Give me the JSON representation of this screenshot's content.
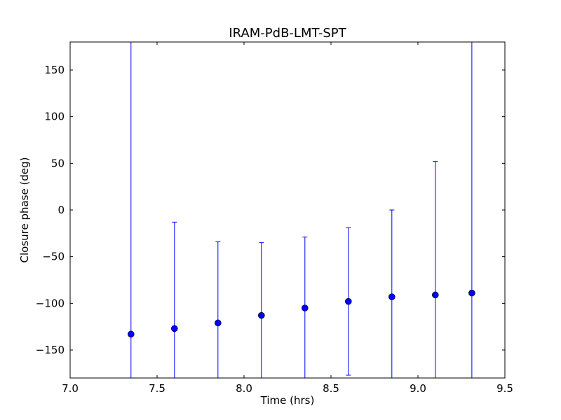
{
  "chart_data": {
    "type": "scatter",
    "title": "IRAM-PdB-LMT-SPT",
    "xlabel": "Time (hrs)",
    "ylabel": "Closure phase (deg)",
    "xlim": [
      7.0,
      9.5
    ],
    "ylim": [
      -180,
      180
    ],
    "xticks": [
      7.0,
      7.5,
      8.0,
      8.5,
      9.0,
      9.5
    ],
    "xtick_labels": [
      "7.0",
      "7.5",
      "8.0",
      "8.5",
      "9.0",
      "9.5"
    ],
    "yticks": [
      -150,
      -100,
      -50,
      0,
      50,
      100,
      150
    ],
    "ytick_labels": [
      "−150",
      "−100",
      "−50",
      "0",
      "50",
      "100",
      "150"
    ],
    "grid": false,
    "color": "#0000ff",
    "points": [
      {
        "x": 7.35,
        "y": -133,
        "err_low": -180,
        "err_high": 180
      },
      {
        "x": 7.6,
        "y": -127,
        "err_low": -180,
        "err_high": -13
      },
      {
        "x": 7.85,
        "y": -121,
        "err_low": -180,
        "err_high": -34
      },
      {
        "x": 8.1,
        "y": -113,
        "err_low": -180,
        "err_high": -35
      },
      {
        "x": 8.35,
        "y": -105,
        "err_low": -180,
        "err_high": -29
      },
      {
        "x": 8.6,
        "y": -98,
        "err_low": -177,
        "err_high": -19
      },
      {
        "x": 8.85,
        "y": -93,
        "err_low": -180,
        "err_high": 0
      },
      {
        "x": 9.1,
        "y": -91,
        "err_low": -180,
        "err_high": 52
      },
      {
        "x": 9.31,
        "y": -89,
        "err_low": -180,
        "err_high": 180
      }
    ]
  }
}
